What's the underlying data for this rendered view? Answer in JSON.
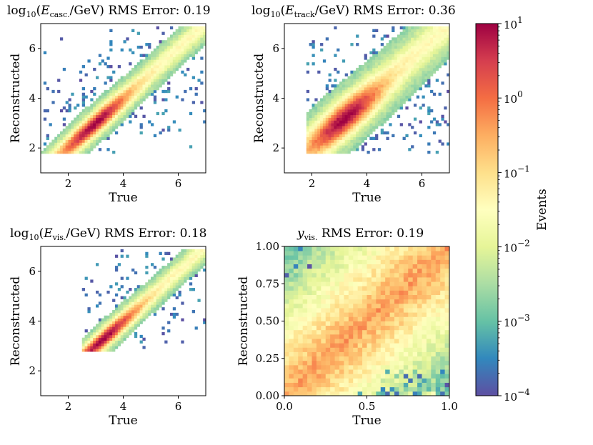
{
  "chart_data": [
    {
      "type": "heatmap",
      "title_parts": {
        "pre": "log",
        "pre_sub": "10",
        "open": "(E",
        "sub": "casc.",
        "close": "/GeV)",
        "rms": " RMS Error: 0.19"
      },
      "xlabel": "True",
      "ylabel": "Reconstructed",
      "xlim": [
        1,
        7
      ],
      "ylim": [
        1,
        7
      ],
      "xticks": [
        2,
        4,
        6
      ],
      "yticks": [
        2,
        4,
        6
      ],
      "x_range_data": [
        1.0,
        7.0
      ],
      "y_range_data": [
        1.8,
        6.9
      ],
      "band_width": 0.35,
      "peak": [
        3.0,
        2.9
      ]
    },
    {
      "type": "heatmap",
      "title_parts": {
        "pre": "log",
        "pre_sub": "10",
        "open": "(E",
        "sub": "track",
        "close": "/GeV)",
        "rms": " RMS Error: 0.36"
      },
      "xlabel": "True",
      "ylabel": "Reconstructed",
      "xlim": [
        1,
        7
      ],
      "ylim": [
        1,
        7
      ],
      "xticks": [
        2,
        4,
        6
      ],
      "yticks": [
        2,
        4,
        6
      ],
      "x_range_data": [
        1.8,
        7.0
      ],
      "y_range_data": [
        1.8,
        6.9
      ],
      "band_width": 0.6,
      "peak": [
        3.2,
        3.2
      ]
    },
    {
      "type": "heatmap",
      "title_parts": {
        "pre": "log",
        "pre_sub": "10",
        "open": "(E",
        "sub": "vis.",
        "close": "/GeV)",
        "rms": " RMS Error: 0.18"
      },
      "xlabel": "True",
      "ylabel": "Reconstructed",
      "xlim": [
        1,
        7
      ],
      "ylim": [
        1,
        7
      ],
      "xticks": [
        2,
        4,
        6
      ],
      "yticks": [
        2,
        4,
        6
      ],
      "x_range_data": [
        2.5,
        7.0
      ],
      "y_range_data": [
        2.8,
        6.9
      ],
      "band_width": 0.3,
      "peak": [
        3.3,
        3.3
      ]
    },
    {
      "type": "heatmap",
      "title_parts": {
        "pre": "y",
        "pre_sub": "vis.",
        "open": "",
        "sub": "",
        "close": "",
        "rms": " RMS Error: 0.19"
      },
      "xlabel": "True",
      "ylabel": "Reconstructed",
      "xlim": [
        0,
        1
      ],
      "ylim": [
        0,
        1
      ],
      "xticks": [
        "0.0",
        "0.5",
        "1.0"
      ],
      "yticks": [
        "0.00",
        "0.25",
        "0.50",
        "0.75",
        "1.00"
      ],
      "x_range_data": [
        0,
        1
      ],
      "y_range_data": [
        0,
        1
      ],
      "band_width": 0.2,
      "peak": [
        0.5,
        0.5
      ]
    }
  ],
  "colorbar": {
    "label": "Events",
    "scale": "log",
    "range": [
      0.0001,
      10
    ],
    "ticks": [
      {
        "base": "10",
        "exp": "1",
        "value": 10
      },
      {
        "base": "10",
        "exp": "0",
        "value": 1
      },
      {
        "base": "10",
        "exp": "−1",
        "value": 0.1
      },
      {
        "base": "10",
        "exp": "−2",
        "value": 0.01
      },
      {
        "base": "10",
        "exp": "−3",
        "value": 0.001
      },
      {
        "base": "10",
        "exp": "−4",
        "value": 0.0001
      }
    ],
    "colormap": "Spectral_r",
    "colors": [
      "#5e4fa2",
      "#3288bd",
      "#66c2a5",
      "#abdda4",
      "#e6f598",
      "#ffffbf",
      "#fee08b",
      "#fdae61",
      "#f46d43",
      "#d53e4f",
      "#9e0142"
    ]
  }
}
